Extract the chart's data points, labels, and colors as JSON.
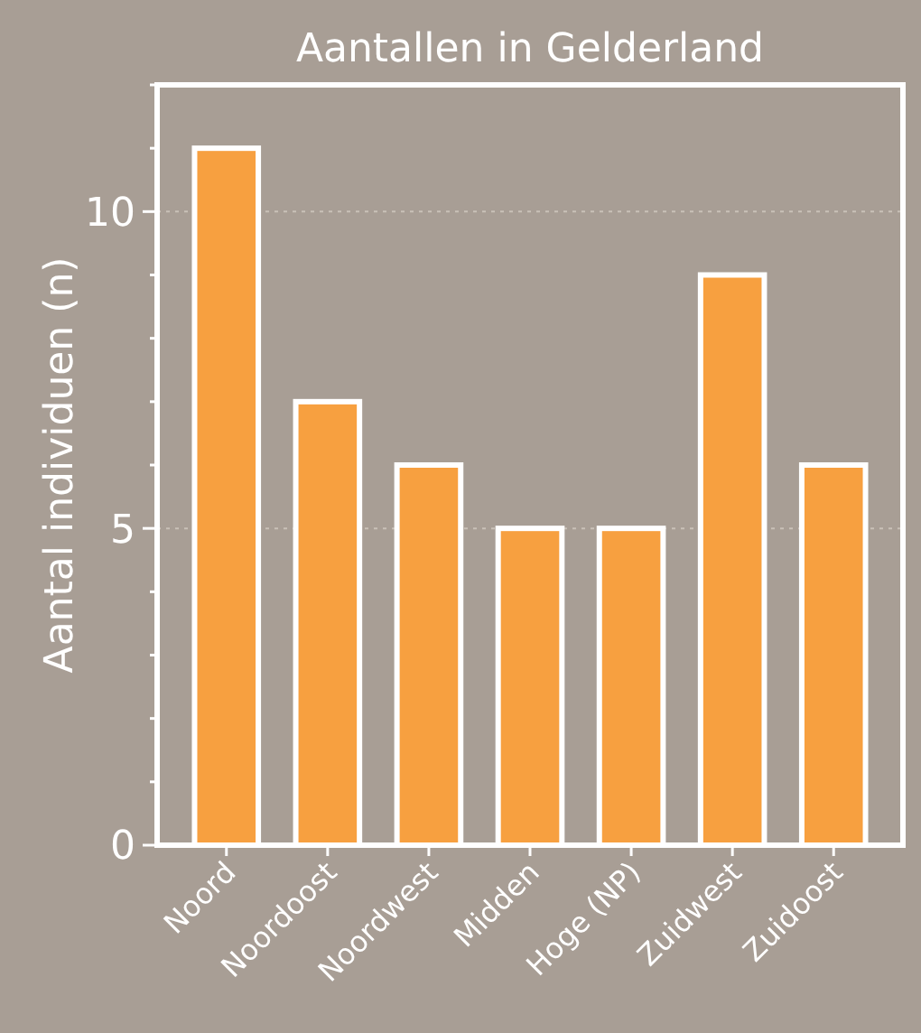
{
  "chart_data": {
    "type": "bar",
    "title": "Aantallen in Gelderland",
    "ylabel": "Aantal individuen (n)",
    "categories": [
      "Noord",
      "Noordoost",
      "Noordwest",
      "Midden",
      "Hoge (NP)",
      "Zuidwest",
      "Zuidoost"
    ],
    "values": [
      11,
      7,
      6,
      5,
      5,
      9,
      6
    ],
    "color": "#f7a040",
    "ylim": [
      0,
      12
    ],
    "yticks": [
      0,
      {
        "value": 1,
        "label": null
      },
      {
        "value": 2,
        "label": null
      },
      {
        "value": 3,
        "label": null
      },
      {
        "value": 4,
        "label": null
      },
      5,
      {
        "value": 6,
        "label": null
      },
      {
        "value": 7,
        "label": null
      },
      {
        "value": 8,
        "label": null
      },
      {
        "value": 9,
        "label": null
      },
      10,
      {
        "value": 11,
        "label": null
      },
      {
        "value": 12,
        "label": null
      }
    ],
    "grid": "y"
  }
}
